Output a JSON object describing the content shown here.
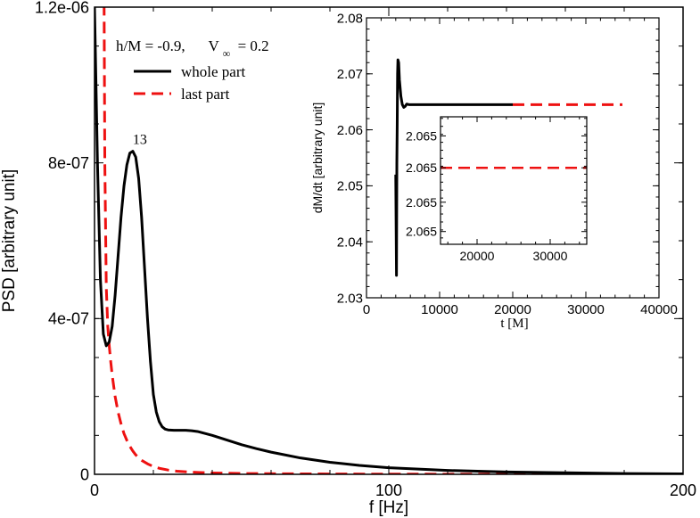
{
  "chart_data": [
    {
      "type": "line",
      "xlabel": "f [Hz]",
      "ylabel": "PSD [arbitrary unit]",
      "xlim": [
        0,
        200
      ],
      "ylim": [
        0,
        1.2e-06
      ],
      "x_ticks": [
        0,
        100,
        200
      ],
      "x_tick_labels": [
        "0",
        "100",
        "200"
      ],
      "y_ticks": [
        0,
        4e-07,
        8e-07,
        1.2e-06
      ],
      "y_tick_labels": [
        "0",
        "4e-07",
        "8e-07",
        "1.2e-06"
      ],
      "annotation": {
        "text": "13",
        "x": 13,
        "y": 8.3e-07
      },
      "legend_title": "h/M = -0.9,",
      "legend_title_v": "V",
      "legend_title_sub": "∞",
      "legend_title_rest": "= 0.2",
      "legend_position": "top-left",
      "series": [
        {
          "name": "whole part",
          "color": "#000000",
          "style": "solid",
          "x": [
            0,
            1,
            2,
            3,
            4,
            5,
            6,
            7,
            8,
            9,
            10,
            11,
            12,
            13,
            14,
            15,
            16,
            17,
            18,
            19,
            20,
            21,
            22,
            23,
            24,
            25,
            27,
            29,
            31,
            33,
            35,
            37,
            40,
            45,
            50,
            55,
            60,
            70,
            80,
            90,
            100,
            120,
            140,
            160,
            180,
            200
          ],
          "y": [
            1.2e-06,
            8e-07,
            5e-07,
            3.6e-07,
            3.3e-07,
            3.4e-07,
            3.8e-07,
            4.6e-07,
            5.6e-07,
            6.6e-07,
            7.4e-07,
            7.95e-07,
            8.25e-07,
            8.3e-07,
            8.15e-07,
            7.6e-07,
            6.6e-07,
            5.3e-07,
            4e-07,
            2.9e-07,
            2.05e-07,
            1.6e-07,
            1.35e-07,
            1.22e-07,
            1.16e-07,
            1.14e-07,
            1.13e-07,
            1.13e-07,
            1.13e-07,
            1.12e-07,
            1.1e-07,
            1.06e-07,
            1e-07,
            8.8e-08,
            7.6e-08,
            6.6e-08,
            5.7e-08,
            4.2e-08,
            3.1e-08,
            2.3e-08,
            1.7e-08,
            1e-08,
            6e-09,
            4e-09,
            2e-09,
            1e-09
          ]
        },
        {
          "name": "last part",
          "color": "#ee1111",
          "style": "dashed",
          "x": [
            4,
            4.5,
            5,
            5.5,
            6,
            7,
            8,
            9,
            10,
            11,
            12,
            13,
            14,
            16,
            18,
            20,
            22,
            25,
            28,
            32,
            36,
            40,
            50,
            60,
            80,
            100,
            120,
            150,
            180,
            200
          ],
          "y": [
            4.8e-07,
            3.8e-07,
            3.3e-07,
            2.9e-07,
            2.55e-07,
            2e-07,
            1.6e-07,
            1.3e-07,
            1.05e-07,
            8.7e-08,
            7.2e-08,
            6e-08,
            5e-08,
            3.6e-08,
            2.7e-08,
            2e-08,
            1.55e-08,
            1.1e-08,
            8e-09,
            6e-09,
            4.5e-09,
            3.5e-09,
            2.2e-09,
            1.6e-09,
            9e-10,
            6e-10,
            4e-10,
            3e-10,
            2e-10,
            1e-10
          ],
          "y_leftmost_hidden": true
        }
      ]
    },
    {
      "type": "line",
      "role": "inset",
      "xlabel": "t [M]",
      "ylabel": "dM/dt [arbitrary unit]",
      "xlim": [
        0,
        40000
      ],
      "ylim": [
        2.03,
        2.08
      ],
      "x_ticks": [
        0,
        10000,
        20000,
        30000,
        40000
      ],
      "x_tick_labels": [
        "0",
        "10000",
        "20000",
        "30000",
        "40000"
      ],
      "y_ticks": [
        2.03,
        2.04,
        2.05,
        2.06,
        2.07,
        2.08
      ],
      "y_tick_labels": [
        "2.03",
        "2.04",
        "2.05",
        "2.06",
        "2.07",
        "2.08"
      ],
      "series": [
        {
          "name": "whole part",
          "color": "#000000",
          "style": "solid",
          "x": [
            4000,
            4100,
            4150,
            4200,
            4250,
            4300,
            4400,
            4500,
            4700,
            4900,
            5100,
            5300,
            5500,
            5800,
            6200,
            7000,
            10000,
            15000,
            20000
          ],
          "y": [
            2.052,
            2.034,
            2.054,
            2.061,
            2.07,
            2.0725,
            2.072,
            2.069,
            2.066,
            2.0645,
            2.064,
            2.0642,
            2.0646,
            2.0645,
            2.0645,
            2.0645,
            2.0645,
            2.0645,
            2.0645
          ]
        },
        {
          "name": "last part",
          "color": "#ee1111",
          "style": "dashed",
          "x": [
            20000,
            35000
          ],
          "y": [
            2.0645,
            2.0645
          ]
        }
      ]
    },
    {
      "type": "line",
      "role": "zoom-inset",
      "xlim": [
        15000,
        35000
      ],
      "ylim": [
        0,
        1
      ],
      "x_ticks": [
        20000,
        30000
      ],
      "x_tick_labels": [
        "20000",
        "30000"
      ],
      "y_tick_labels": [
        "2.065",
        "2.065",
        "2.065",
        "2.065"
      ],
      "series": [
        {
          "name": "last part",
          "color": "#ee1111",
          "style": "dashed",
          "x": [
            15000,
            35000
          ],
          "y": [
            0.6,
            0.6
          ]
        }
      ]
    }
  ]
}
